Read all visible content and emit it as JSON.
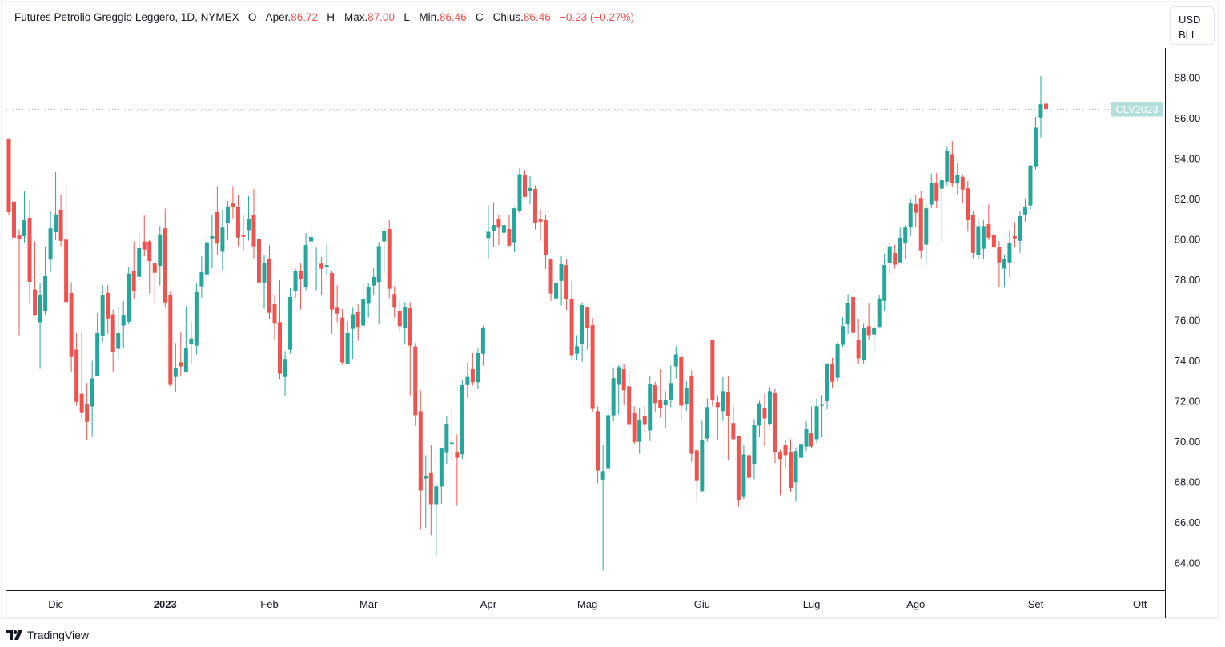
{
  "legend": {
    "title": "Futures Petrolio Greggio Leggero, 1D, NYMEX",
    "open_label": "O - Aper.",
    "open": "86.72",
    "high_label": "H - Max.",
    "high": "87.00",
    "low_label": "L - Min.",
    "low": "86.46",
    "close_label": "C - Chius.",
    "close": "86.46",
    "change": "−0.23 (−0.27%)"
  },
  "unit": {
    "line1": "USD",
    "line2": "BLL"
  },
  "price_label": "CLV2023",
  "footer": {
    "brand": "TradingView"
  },
  "colors": {
    "up": "#26a69a",
    "down": "#ef5350",
    "price_label_bg": "#b2dfdb",
    "grid_line": "#e0e3eb"
  },
  "chart_data": {
    "type": "candlestick",
    "title": "Futures Petrolio Greggio Leggero, 1D, NYMEX",
    "ylabel": "USD BLL",
    "ylim": [
      62.65,
      89.47
    ],
    "y_ticks": [
      "64.00",
      "66.00",
      "68.00",
      "70.00",
      "72.00",
      "74.00",
      "76.00",
      "78.00",
      "80.00",
      "82.00",
      "84.00",
      "86.00",
      "88.00"
    ],
    "x_ticks": [
      {
        "label": "Dic",
        "bar": 9,
        "bold": false
      },
      {
        "label": "2023",
        "bar": 30,
        "bold": true
      },
      {
        "label": "Feb",
        "bar": 50,
        "bold": false
      },
      {
        "label": "Mar",
        "bar": 69,
        "bold": false
      },
      {
        "label": "Apr",
        "bar": 92,
        "bold": false
      },
      {
        "label": "Mag",
        "bar": 111,
        "bold": false
      },
      {
        "label": "Giu",
        "bar": 133,
        "bold": false
      },
      {
        "label": "Lug",
        "bar": 154,
        "bold": false
      },
      {
        "label": "Ago",
        "bar": 174,
        "bold": false
      },
      {
        "label": "Set",
        "bar": 197,
        "bold": false
      },
      {
        "label": "Ott",
        "bar": 217,
        "bold": false
      }
    ],
    "last_price": 86.46,
    "ohlc_fields": [
      "open",
      "high",
      "low",
      "close"
    ],
    "ohlc": [
      [
        85.0,
        85.0,
        81.2,
        81.35
      ],
      [
        81.87,
        82.4,
        77.6,
        80.09
      ],
      [
        80.2,
        80.5,
        75.27,
        80.0
      ],
      [
        80.16,
        82.37,
        79.85,
        80.95
      ],
      [
        81.07,
        81.94,
        76.86,
        77.9
      ],
      [
        77.52,
        79.9,
        76.2,
        76.24
      ],
      [
        75.9,
        77.85,
        73.6,
        77.23
      ],
      [
        76.46,
        79.63,
        76.29,
        78.18
      ],
      [
        79.0,
        81.39,
        78.38,
        80.55
      ],
      [
        80.36,
        83.33,
        79.96,
        81.24
      ],
      [
        81.47,
        82.23,
        79.67,
        79.93
      ],
      [
        79.99,
        82.73,
        76.77,
        76.9
      ],
      [
        77.35,
        77.88,
        73.43,
        74.19
      ],
      [
        74.55,
        75.37,
        71.78,
        71.97
      ],
      [
        72.37,
        75.45,
        71.1,
        71.42
      ],
      [
        71.84,
        72.9,
        70.09,
        70.98
      ],
      [
        71.74,
        74.0,
        70.23,
        73.13
      ],
      [
        73.23,
        76.36,
        73.23,
        75.37
      ],
      [
        75.23,
        77.74,
        74.92,
        77.25
      ],
      [
        77.35,
        77.74,
        75.34,
        76.09
      ],
      [
        76.3,
        76.53,
        73.43,
        74.44
      ],
      [
        74.59,
        76.63,
        74.05,
        75.37
      ],
      [
        75.74,
        76.95,
        74.65,
        76.24
      ],
      [
        75.93,
        78.61,
        75.8,
        78.31
      ],
      [
        78.42,
        79.9,
        77.06,
        77.45
      ],
      [
        78.15,
        80.32,
        77.98,
        79.57
      ],
      [
        79.9,
        81.18,
        79.17,
        79.5
      ],
      [
        79.9,
        79.96,
        77.32,
        78.93
      ],
      [
        78.81,
        78.83,
        76.79,
        78.35
      ],
      [
        78.69,
        80.67,
        77.72,
        80.25
      ],
      [
        80.55,
        81.52,
        76.62,
        76.88
      ],
      [
        77.23,
        77.43,
        72.73,
        72.81
      ],
      [
        73.2,
        74.88,
        72.46,
        73.65
      ],
      [
        73.93,
        75.45,
        73.26,
        73.72
      ],
      [
        73.45,
        76.7,
        73.45,
        74.61
      ],
      [
        74.81,
        75.94,
        73.85,
        75.1
      ],
      [
        74.75,
        77.82,
        74.31,
        77.39
      ],
      [
        77.68,
        79.17,
        77.12,
        78.38
      ],
      [
        78.27,
        80.12,
        77.98,
        79.86
      ],
      [
        80.05,
        81.22,
        78.58,
        80.16
      ],
      [
        81.35,
        82.64,
        79.22,
        79.79
      ],
      [
        79.39,
        81.48,
        78.47,
        80.59
      ],
      [
        80.79,
        81.9,
        79.96,
        81.61
      ],
      [
        81.78,
        82.64,
        81.06,
        81.61
      ],
      [
        81.61,
        82.2,
        79.66,
        80.09
      ],
      [
        80.22,
        81.22,
        79.46,
        80.13
      ],
      [
        80.46,
        82.14,
        79.94,
        80.99
      ],
      [
        81.22,
        82.5,
        79.06,
        79.66
      ],
      [
        80.03,
        80.46,
        77.69,
        77.87
      ],
      [
        77.87,
        79.23,
        76.57,
        78.84
      ],
      [
        79.06,
        79.72,
        76.07,
        76.37
      ],
      [
        76.79,
        77.23,
        74.98,
        75.87
      ],
      [
        75.91,
        77.98,
        73.1,
        73.36
      ],
      [
        73.2,
        74.48,
        72.24,
        74.09
      ],
      [
        74.55,
        77.58,
        74.35,
        77.15
      ],
      [
        77.45,
        78.57,
        77.08,
        78.44
      ],
      [
        78.44,
        78.84,
        76.53,
        78.05
      ],
      [
        77.62,
        80.32,
        77.48,
        79.72
      ],
      [
        79.9,
        80.62,
        78.47,
        80.12
      ],
      [
        79.04,
        79.59,
        77.48,
        79.06
      ],
      [
        78.8,
        79.13,
        77.23,
        78.55
      ],
      [
        78.64,
        79.76,
        78.18,
        78.73
      ],
      [
        78.34,
        78.47,
        75.34,
        76.53
      ],
      [
        76.62,
        77.74,
        75.89,
        76.33
      ],
      [
        76.13,
        76.56,
        73.8,
        73.92
      ],
      [
        73.86,
        75.96,
        73.86,
        75.37
      ],
      [
        75.58,
        76.62,
        74.09,
        76.3
      ],
      [
        76.4,
        76.79,
        74.98,
        75.67
      ],
      [
        75.74,
        77.82,
        75.54,
        77.03
      ],
      [
        76.82,
        77.85,
        76.13,
        77.65
      ],
      [
        77.72,
        78.57,
        77.25,
        78.14
      ],
      [
        77.89,
        79.87,
        75.83,
        79.67
      ],
      [
        79.9,
        80.62,
        78.31,
        80.42
      ],
      [
        80.52,
        80.95,
        77.1,
        77.56
      ],
      [
        77.3,
        77.69,
        76.13,
        76.62
      ],
      [
        76.46,
        77.0,
        75.43,
        75.71
      ],
      [
        75.63,
        76.9,
        74.8,
        76.66
      ],
      [
        76.59,
        76.9,
        72.3,
        74.75
      ],
      [
        74.71,
        74.88,
        70.78,
        71.31
      ],
      [
        71.51,
        72.54,
        65.64,
        67.58
      ],
      [
        68.17,
        69.33,
        65.73,
        68.32
      ],
      [
        68.44,
        69.82,
        65.37,
        66.87
      ],
      [
        66.87,
        67.88,
        64.36,
        67.79
      ],
      [
        67.78,
        69.7,
        66.92,
        69.66
      ],
      [
        69.44,
        71.27,
        68.9,
        70.88
      ],
      [
        69.9,
        71.64,
        69.13,
        69.96
      ],
      [
        69.5,
        70.36,
        66.82,
        69.2
      ],
      [
        69.37,
        73.07,
        69.13,
        72.79
      ],
      [
        72.8,
        73.9,
        72.17,
        73.2
      ],
      [
        73.58,
        74.38,
        72.77,
        72.94
      ],
      [
        72.94,
        74.61,
        72.59,
        74.38
      ],
      [
        74.35,
        75.74,
        73.76,
        75.64
      ],
      [
        80.07,
        81.7,
        79.04,
        80.38
      ],
      [
        80.42,
        81.84,
        79.63,
        80.71
      ],
      [
        80.99,
        81.21,
        79.72,
        80.58
      ],
      [
        80.33,
        80.95,
        79.67,
        80.71
      ],
      [
        80.52,
        81.21,
        79.63,
        79.7
      ],
      [
        79.86,
        81.57,
        79.37,
        81.54
      ],
      [
        81.41,
        83.53,
        81.31,
        83.23
      ],
      [
        83.2,
        83.42,
        82.11,
        82.11
      ],
      [
        82.4,
        83.13,
        81.74,
        82.54
      ],
      [
        82.5,
        82.67,
        80.49,
        80.82
      ],
      [
        80.99,
        81.5,
        79.93,
        80.88
      ],
      [
        80.95,
        81.21,
        78.54,
        79.24
      ],
      [
        79.01,
        79.04,
        76.96,
        77.32
      ],
      [
        77.08,
        78.38,
        76.73,
        77.85
      ],
      [
        77.95,
        79.17,
        76.73,
        78.77
      ],
      [
        78.73,
        79.04,
        76.5,
        77.06
      ],
      [
        77.06,
        77.94,
        74.02,
        74.28
      ],
      [
        74.35,
        75.27,
        74.05,
        74.72
      ],
      [
        74.85,
        76.9,
        73.93,
        76.75
      ],
      [
        76.63,
        76.69,
        74.55,
        75.63
      ],
      [
        75.76,
        76.11,
        71.45,
        71.62
      ],
      [
        71.51,
        71.75,
        67.95,
        68.57
      ],
      [
        68.12,
        69.82,
        63.62,
        68.54
      ],
      [
        68.65,
        71.8,
        68.5,
        71.31
      ],
      [
        71.3,
        73.65,
        71.01,
        73.14
      ],
      [
        72.81,
        73.78,
        71.35,
        73.69
      ],
      [
        73.58,
        73.86,
        71.8,
        72.54
      ],
      [
        72.74,
        73.52,
        70.63,
        70.83
      ],
      [
        71.41,
        71.75,
        69.9,
        69.99
      ],
      [
        69.99,
        71.67,
        69.4,
        71.09
      ],
      [
        71.29,
        71.75,
        70.43,
        70.83
      ],
      [
        70.56,
        73.23,
        70.03,
        72.83
      ],
      [
        72.79,
        72.96,
        71.49,
        71.91
      ],
      [
        72.04,
        73.58,
        71.18,
        71.67
      ],
      [
        71.8,
        72.5,
        70.65,
        72.04
      ],
      [
        72.07,
        73.78,
        71.71,
        72.9
      ],
      [
        73.72,
        74.72,
        73.12,
        74.32
      ],
      [
        74.18,
        74.38,
        70.98,
        71.78
      ],
      [
        71.87,
        72.99,
        71.51,
        72.66
      ],
      [
        73.23,
        73.53,
        69.0,
        69.4
      ],
      [
        69.57,
        69.69,
        67.02,
        68.05
      ],
      [
        67.55,
        71.02,
        67.49,
        70.09
      ],
      [
        70.15,
        72.15,
        69.99,
        71.71
      ],
      [
        75.01,
        75.04,
        71.75,
        72.08
      ],
      [
        71.95,
        72.3,
        70.12,
        71.71
      ],
      [
        71.51,
        73.19,
        71.02,
        72.5
      ],
      [
        72.44,
        73.25,
        69.07,
        71.27
      ],
      [
        70.92,
        71.75,
        70.12,
        70.12
      ],
      [
        70.26,
        70.28,
        66.79,
        67.09
      ],
      [
        67.26,
        69.82,
        67.16,
        69.37
      ],
      [
        69.33,
        70.46,
        68.05,
        68.21
      ],
      [
        68.9,
        71.11,
        68.15,
        70.81
      ],
      [
        70.79,
        72.01,
        70.22,
        71.9
      ],
      [
        71.67,
        72.37,
        69.76,
        71.15
      ],
      [
        70.88,
        72.7,
        70.79,
        72.5
      ],
      [
        72.4,
        72.61,
        68.94,
        69.49
      ],
      [
        69.49,
        69.6,
        67.35,
        69.14
      ],
      [
        69.82,
        70.09,
        68.71,
        69.33
      ],
      [
        69.47,
        70.12,
        67.52,
        67.68
      ],
      [
        67.99,
        69.69,
        67.02,
        69.53
      ],
      [
        69.2,
        70.56,
        68.94,
        69.85
      ],
      [
        69.76,
        71.01,
        69.53,
        70.61
      ],
      [
        70.41,
        71.75,
        69.66,
        69.76
      ],
      [
        70.12,
        72.14,
        69.93,
        71.75
      ],
      [
        71.78,
        72.3,
        70.22,
        71.82
      ],
      [
        72.0,
        73.89,
        71.6,
        73.86
      ],
      [
        73.86,
        74.15,
        72.67,
        72.96
      ],
      [
        73.16,
        74.92,
        72.96,
        74.81
      ],
      [
        74.79,
        76.16,
        74.68,
        75.71
      ],
      [
        75.8,
        77.29,
        75.34,
        76.86
      ],
      [
        77.15,
        77.29,
        75.1,
        75.38
      ],
      [
        75.01,
        76.07,
        73.82,
        74.12
      ],
      [
        74.05,
        75.87,
        73.82,
        75.64
      ],
      [
        75.71,
        76.86,
        75.04,
        75.27
      ],
      [
        75.3,
        76.16,
        74.51,
        75.63
      ],
      [
        75.67,
        77.25,
        75.67,
        77.08
      ],
      [
        76.96,
        79.3,
        76.44,
        78.73
      ],
      [
        78.84,
        79.87,
        78.31,
        79.66
      ],
      [
        79.33,
        79.74,
        78.55,
        78.75
      ],
      [
        78.86,
        80.58,
        78.86,
        80.09
      ],
      [
        79.8,
        80.71,
        79.06,
        80.59
      ],
      [
        80.59,
        81.98,
        80.16,
        81.78
      ],
      [
        81.74,
        82.21,
        80.59,
        81.32
      ],
      [
        82.05,
        82.4,
        79.06,
        79.46
      ],
      [
        79.74,
        81.85,
        78.71,
        81.54
      ],
      [
        81.72,
        83.26,
        81.54,
        82.8
      ],
      [
        82.8,
        83.29,
        81.54,
        81.91
      ],
      [
        82.51,
        83.09,
        79.89,
        82.93
      ],
      [
        82.86,
        84.62,
        82.67,
        84.38
      ],
      [
        84.22,
        84.87,
        82.57,
        82.77
      ],
      [
        82.77,
        83.79,
        82.23,
        83.21
      ],
      [
        83.09,
        83.22,
        81.77,
        82.47
      ],
      [
        82.53,
        82.89,
        80.38,
        80.95
      ],
      [
        81.21,
        81.41,
        79.06,
        79.34
      ],
      [
        79.21,
        81.04,
        79.0,
        80.66
      ],
      [
        79.54,
        80.95,
        79.04,
        80.66
      ],
      [
        80.75,
        81.74,
        79.96,
        80.09
      ],
      [
        80.22,
        80.35,
        79.46,
        79.6
      ],
      [
        79.63,
        79.92,
        77.65,
        78.86
      ],
      [
        78.55,
        79.26,
        77.61,
        79.04
      ],
      [
        78.86,
        80.42,
        78.14,
        79.83
      ],
      [
        80.16,
        80.86,
        79.59,
        80.05
      ],
      [
        79.93,
        81.41,
        79.34,
        81.15
      ],
      [
        81.24,
        82.04,
        80.88,
        81.61
      ],
      [
        81.68,
        83.66,
        81.48,
        83.66
      ],
      [
        83.62,
        86.06,
        83.46,
        85.53
      ],
      [
        86.03,
        88.08,
        85.04,
        86.69
      ],
      [
        86.72,
        87.0,
        86.46,
        86.46
      ]
    ]
  }
}
